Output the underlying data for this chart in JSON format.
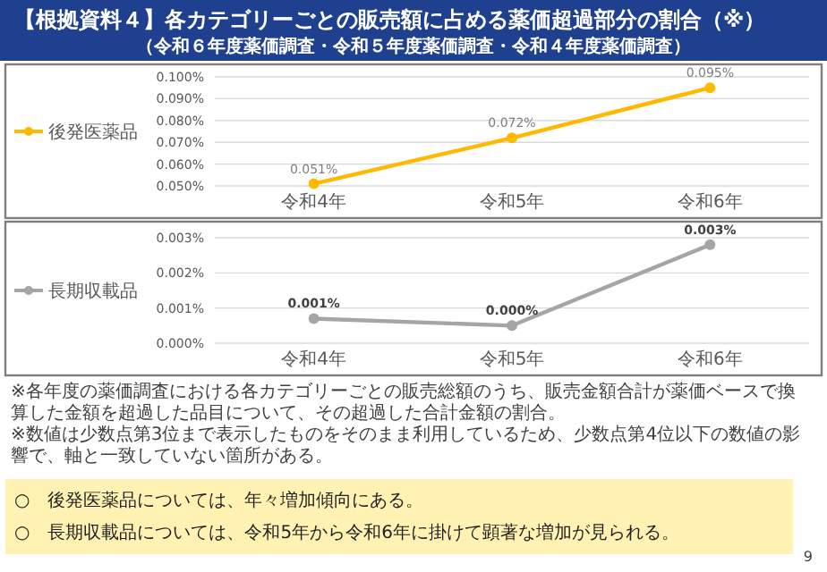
{
  "chart_data": [
    {
      "type": "line",
      "title": "【根拠資料４】各カテゴリーごとの販売額に占める薬価超過部分の割合（※）",
      "subtitle": "（令和６年度薬価調査・令和５年度薬価調査・令和４年度薬価調査）",
      "categories": [
        "令和4年",
        "令和5年",
        "令和6年"
      ],
      "series": [
        {
          "name": "後発医薬品",
          "color": "#ffb900",
          "values": [
            0.051,
            0.072,
            0.095
          ]
        }
      ],
      "ylim": [
        0.05,
        0.1
      ],
      "yticks": [
        {
          "value": 0.05,
          "label": "0.050%"
        },
        {
          "value": 0.06,
          "label": "0.060%"
        },
        {
          "value": 0.07,
          "label": "0.070%"
        },
        {
          "value": 0.08,
          "label": "0.080%"
        },
        {
          "value": 0.09,
          "label": "0.090%"
        },
        {
          "value": 0.1,
          "label": "0.100%"
        }
      ],
      "value_labels": [
        "0.051%",
        "0.072%",
        "0.095%"
      ],
      "grid": "y",
      "legend": "left",
      "marker": "circle",
      "line_style": "solid"
    },
    {
      "type": "line",
      "categories": [
        "令和4年",
        "令和5年",
        "令和6年"
      ],
      "series": [
        {
          "name": "長期収載品",
          "color": "#a5a5a5",
          "values": [
            0.0007,
            0.0005,
            0.0028
          ]
        }
      ],
      "ylim": [
        0,
        0.003
      ],
      "yticks": [
        {
          "value": 0,
          "label": "0.000%"
        },
        {
          "value": 0.001,
          "label": "0.001%"
        },
        {
          "value": 0.002,
          "label": "0.002%"
        },
        {
          "value": 0.003,
          "label": "0.003%"
        }
      ],
      "value_labels": [
        "0.001%",
        "0.000%",
        "0.003%"
      ],
      "grid": "y",
      "legend": "left",
      "marker": "circle",
      "line_style": "solid",
      "annotations": [
        "※各年度の薬価調査における各カテゴリーごとの販売総額のうち、販売金額合計が薬価ベースで換算した金額を超過した品目について、その超過した合計金額の割合。",
        "※数値は少数点第3位まで表示したものをそのまま利用しているため、少数点第4位以下の数値の影響で、軸と一致していない箇所がある。",
        "○　後発医薬品については、年々増加傾向にある。",
        "○　長期収載品については、令和5年から令和6年に掛けて顕著な増加が見られる。",
        "9"
      ]
    }
  ]
}
